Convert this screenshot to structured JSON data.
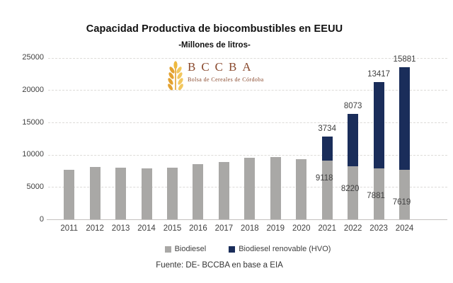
{
  "title": "Capacidad Productiva de biocombustibles en EEUU",
  "subtitle": "-Millones de litros-",
  "logo": {
    "acronym": "BCCBA",
    "subtext": "Bolsa de Cereales de Córdoba",
    "text_color": "#8a4a2e",
    "wheat_dark": "#e3a231",
    "wheat_light": "#f2c75e"
  },
  "legend": [
    {
      "label": "Biodiesel",
      "color": "#a9a8a6"
    },
    {
      "label": "Biodiesel renovable (HVO)",
      "color": "#1a2d5a"
    }
  ],
  "source": "Fuente: DE- BCCBA en base a EIA",
  "colors": {
    "biodiesel_bar": "#a9a8a6",
    "hvo_bar": "#1a2d5a",
    "gridline": "#dddbd8",
    "axis_line": "#c3c1bf",
    "label_text": "#404040"
  },
  "chart_data": {
    "type": "bar",
    "stacked": true,
    "title": "Capacidad Productiva de biocombustibles en EEUU",
    "subtitle": "-Millones de litros-",
    "xlabel": "",
    "ylabel": "Millones de litros",
    "categories": [
      "2011",
      "2012",
      "2013",
      "2014",
      "2015",
      "2016",
      "2017",
      "2018",
      "2019",
      "2020",
      "2021",
      "2022",
      "2023",
      "2024"
    ],
    "series": [
      {
        "name": "Biodiesel",
        "color": "#a9a8a6",
        "values": [
          7650,
          8090,
          7960,
          7840,
          7980,
          8540,
          8820,
          9480,
          9690,
          9330,
          9118,
          8220,
          7881,
          7619
        ]
      },
      {
        "name": "Biodiesel renovable (HVO)",
        "color": "#1a2d5a",
        "values": [
          0,
          0,
          0,
          0,
          0,
          0,
          0,
          0,
          0,
          0,
          3734,
          8073,
          13417,
          15881
        ]
      }
    ],
    "data_labels": {
      "shown_for_categories": [
        "2021",
        "2022",
        "2023",
        "2024"
      ],
      "biodiesel_labels": [
        9118,
        8220,
        7881,
        7619
      ],
      "hvo_labels": [
        3734,
        8073,
        13417,
        15881
      ]
    },
    "ylim": [
      0,
      25000
    ],
    "yticks": [
      0,
      5000,
      10000,
      15000,
      20000,
      25000
    ],
    "grid": "horizontal-dashed",
    "legend_position": "bottom"
  }
}
